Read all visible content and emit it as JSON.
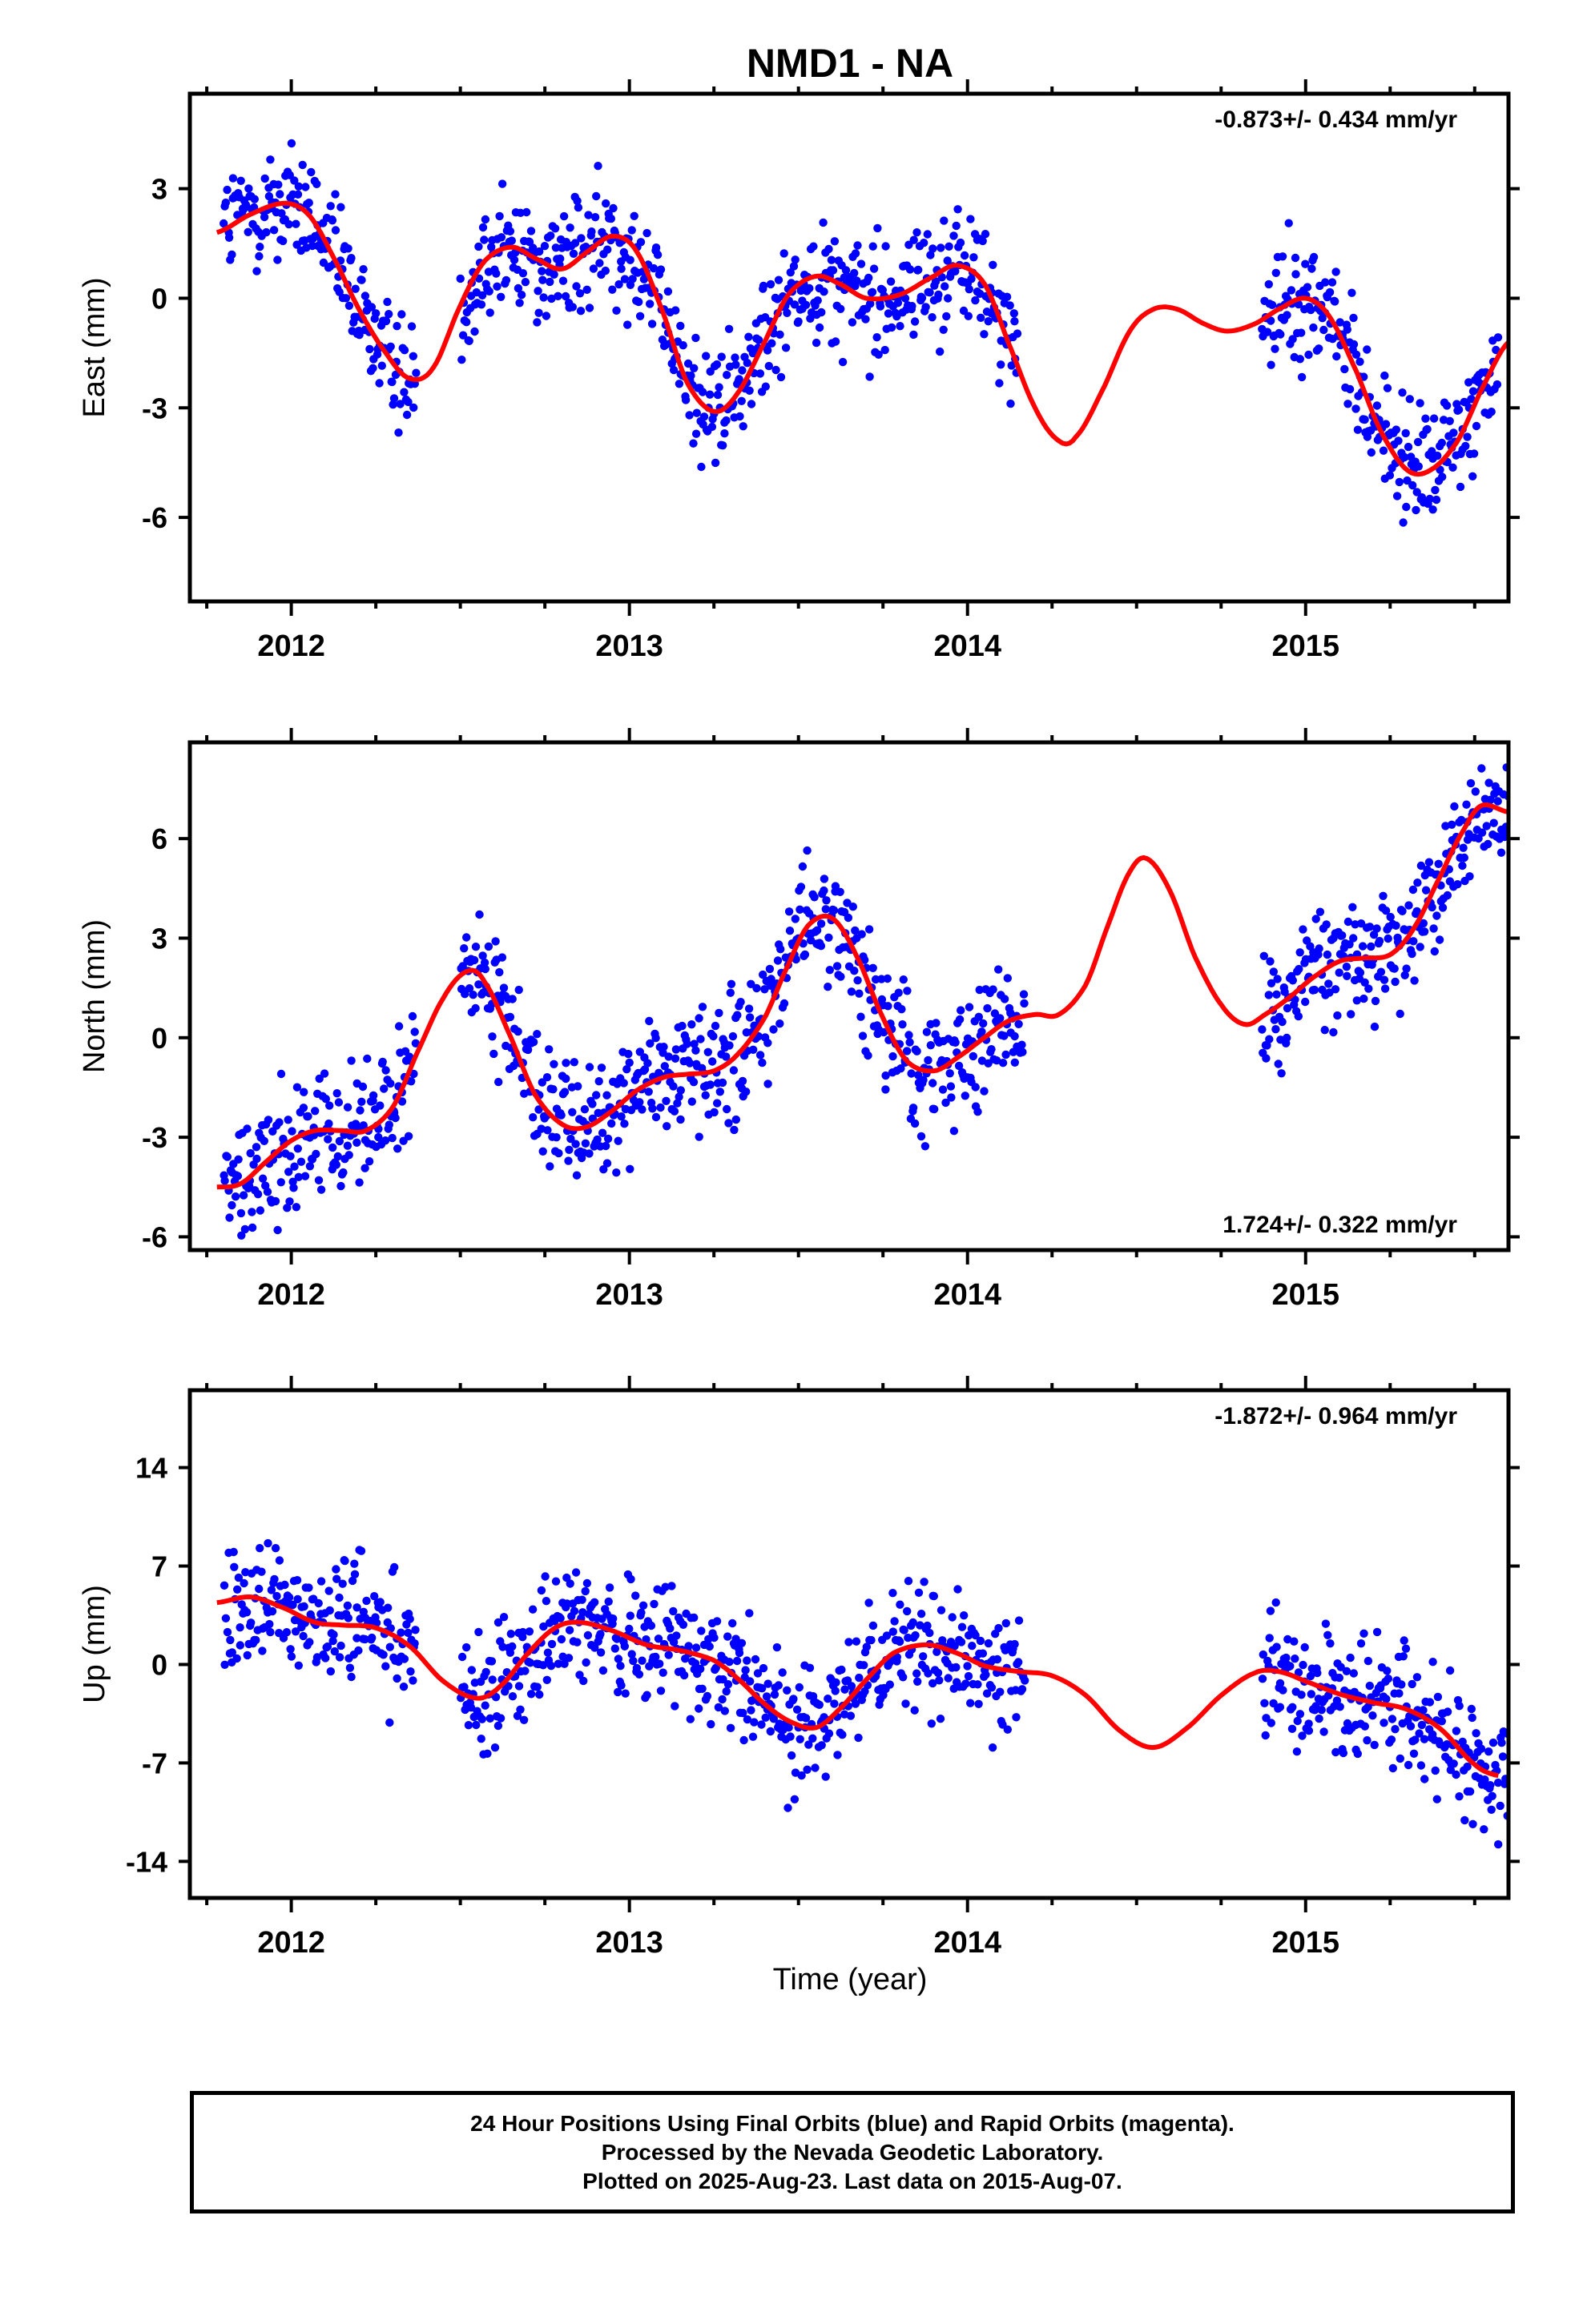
{
  "title": "NMD1 - NA",
  "xlabel": "Time (year)",
  "colors": {
    "points": "#0000ff",
    "model": "#ff0000",
    "frame": "#000000"
  },
  "footer": {
    "line1": "24 Hour Positions Using Final Orbits (blue) and Rapid Orbits (magenta).",
    "line2": "Processed by the Nevada Geodetic Laboratory.",
    "line3": "Plotted on 2025-Aug-23. Last data on 2015-Aug-07."
  },
  "chart_data": [
    {
      "type": "scatter",
      "ylabel": "East (mm)",
      "rate_text": "-0.873+/- 0.434 mm/yr",
      "rate_position": "top-right",
      "xlim": [
        2011.7,
        2015.6
      ],
      "ylim": [
        -8.3,
        5.6
      ],
      "x_ticks": [
        2012,
        2013,
        2014,
        2015
      ],
      "x_tick_labels": [
        "2012",
        "2013",
        "2014",
        "2015"
      ],
      "y_ticks": [
        3,
        0,
        -3,
        -6
      ],
      "y_tick_labels": [
        "3",
        "0",
        "-3",
        "-6"
      ],
      "data_ranges": [
        [
          2011.8,
          2012.37
        ],
        [
          2012.5,
          2014.15
        ],
        [
          2014.87,
          2015.57
        ]
      ],
      "model_curve": {
        "x": [
          2011.78,
          2011.88,
          2011.98,
          2012.05,
          2012.12,
          2012.2,
          2012.28,
          2012.35,
          2012.42,
          2012.5,
          2012.57,
          2012.65,
          2012.72,
          2012.8,
          2012.88,
          2012.95,
          2013.02,
          2013.1,
          2013.17,
          2013.25,
          2013.32,
          2013.4,
          2013.47,
          2013.55,
          2013.62,
          2013.7,
          2013.8,
          2013.9,
          2013.97,
          2014.05,
          2014.12,
          2014.2,
          2014.27,
          2014.32,
          2014.4,
          2014.48,
          2014.55,
          2014.62,
          2014.7,
          2014.77,
          2014.85,
          2014.92,
          2015.0,
          2015.07,
          2015.15,
          2015.22,
          2015.3,
          2015.37,
          2015.45,
          2015.52,
          2015.6
        ],
        "y": [
          1.8,
          2.3,
          2.6,
          2.3,
          1.2,
          -0.3,
          -1.5,
          -2.2,
          -1.9,
          -0.2,
          1.0,
          1.4,
          1.1,
          0.8,
          1.3,
          1.7,
          1.3,
          -0.4,
          -2.3,
          -3.1,
          -2.6,
          -1.2,
          0.1,
          0.6,
          0.4,
          0.0,
          0.1,
          0.6,
          0.9,
          0.4,
          -1.2,
          -3.0,
          -3.9,
          -3.8,
          -2.5,
          -0.9,
          -0.3,
          -0.3,
          -0.7,
          -0.9,
          -0.7,
          -0.3,
          0.0,
          -0.5,
          -2.0,
          -3.6,
          -4.7,
          -4.7,
          -3.9,
          -2.5,
          -1.2
        ]
      }
    },
    {
      "type": "scatter",
      "ylabel": "North (mm)",
      "rate_text": "1.724+/- 0.322 mm/yr",
      "rate_position": "bottom-right",
      "xlim": [
        2011.7,
        2015.6
      ],
      "ylim": [
        -6.4,
        8.9
      ],
      "x_ticks": [
        2012,
        2013,
        2014,
        2015
      ],
      "x_tick_labels": [
        "2012",
        "2013",
        "2014",
        "2015"
      ],
      "y_ticks": [
        6,
        3,
        0,
        -3,
        -6
      ],
      "y_tick_labels": [
        "6",
        "3",
        "0",
        "-3",
        "-6"
      ],
      "data_ranges": [
        [
          2011.8,
          2012.37
        ],
        [
          2012.5,
          2014.17
        ],
        [
          2014.87,
          2015.6
        ]
      ],
      "model_curve": {
        "x": [
          2011.78,
          2011.85,
          2011.93,
          2012.0,
          2012.07,
          2012.15,
          2012.22,
          2012.3,
          2012.37,
          2012.45,
          2012.52,
          2012.57,
          2012.65,
          2012.72,
          2012.8,
          2012.87,
          2012.95,
          2013.02,
          2013.1,
          2013.17,
          2013.25,
          2013.32,
          2013.4,
          2013.47,
          2013.53,
          2013.6,
          2013.67,
          2013.75,
          2013.82,
          2013.9,
          2013.97,
          2014.05,
          2014.12,
          2014.2,
          2014.27,
          2014.35,
          2014.42,
          2014.48,
          2014.53,
          2014.6,
          2014.67,
          2014.75,
          2014.82,
          2014.88,
          2014.95,
          2015.02,
          2015.1,
          2015.17,
          2015.25,
          2015.32,
          2015.4,
          2015.47,
          2015.52,
          2015.6
        ],
        "y": [
          -4.5,
          -4.4,
          -3.7,
          -3.1,
          -2.8,
          -2.8,
          -2.8,
          -2.1,
          -0.5,
          1.2,
          2.0,
          1.7,
          0.0,
          -1.7,
          -2.6,
          -2.7,
          -2.2,
          -1.6,
          -1.2,
          -1.1,
          -1.0,
          -0.5,
          0.6,
          2.2,
          3.4,
          3.6,
          2.5,
          0.6,
          -0.7,
          -1.0,
          -0.6,
          0.0,
          0.5,
          0.7,
          0.7,
          1.6,
          3.5,
          5.0,
          5.4,
          4.4,
          2.5,
          1.0,
          0.4,
          0.7,
          1.2,
          1.8,
          2.3,
          2.4,
          2.5,
          3.3,
          4.9,
          6.3,
          7.0,
          6.8
        ]
      }
    },
    {
      "type": "scatter",
      "ylabel": "Up (mm)",
      "rate_text": "-1.872+/- 0.964 mm/yr",
      "rate_position": "top-right",
      "xlim": [
        2011.7,
        2015.6
      ],
      "ylim": [
        -16.6,
        19.5
      ],
      "x_ticks": [
        2012,
        2013,
        2014,
        2015
      ],
      "x_tick_labels": [
        "2012",
        "2013",
        "2014",
        "2015"
      ],
      "y_ticks": [
        14,
        7,
        0,
        -7,
        -14
      ],
      "y_tick_labels": [
        "14",
        "7",
        "0",
        "-7",
        "-14"
      ],
      "data_ranges": [
        [
          2011.8,
          2012.37
        ],
        [
          2012.5,
          2014.17
        ],
        [
          2014.87,
          2015.6
        ]
      ],
      "model_curve": {
        "x": [
          2011.78,
          2011.88,
          2011.98,
          2012.07,
          2012.15,
          2012.25,
          2012.35,
          2012.45,
          2012.55,
          2012.62,
          2012.7,
          2012.78,
          2012.85,
          2012.95,
          2013.05,
          2013.15,
          2013.25,
          2013.32,
          2013.4,
          2013.47,
          2013.55,
          2013.62,
          2013.7,
          2013.78,
          2013.88,
          2013.97,
          2014.05,
          2014.15,
          2014.25,
          2014.35,
          2014.45,
          2014.55,
          2014.65,
          2014.75,
          2014.85,
          2014.92,
          2015.0,
          2015.1,
          2015.2,
          2015.3,
          2015.4,
          2015.5,
          2015.57
        ],
        "y": [
          4.4,
          4.8,
          4.0,
          3.0,
          2.8,
          2.6,
          1.3,
          -1.2,
          -2.4,
          -1.5,
          0.8,
          2.6,
          3.0,
          2.4,
          1.4,
          1.0,
          0.3,
          -1.0,
          -2.8,
          -4.0,
          -4.5,
          -3.2,
          -1.1,
          0.8,
          1.4,
          0.8,
          -0.1,
          -0.5,
          -0.8,
          -2.2,
          -4.7,
          -5.9,
          -4.5,
          -2.2,
          -0.6,
          -0.5,
          -1.2,
          -2.1,
          -2.7,
          -3.2,
          -4.6,
          -7.1,
          -7.9
        ]
      }
    }
  ]
}
